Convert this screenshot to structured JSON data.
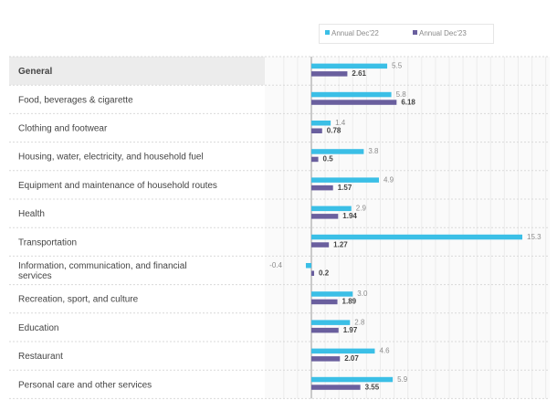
{
  "chart_data": {
    "type": "bar",
    "orientation": "horizontal",
    "categories": [
      "General",
      "Food, beverages & cigarette",
      "Clothing and footwear",
      "Housing, water, electricity, and household fuel",
      "Equipment and maintenance of household routes",
      "Health",
      "Transportation",
      "Information, communication, and financial services",
      "Recreation, sport, and culture",
      "Education",
      "Restaurant",
      "Personal care and other services"
    ],
    "series": [
      {
        "name": "Annual Dec'22",
        "color": "#3bbfe6",
        "values": [
          5.5,
          5.8,
          1.4,
          3.8,
          4.9,
          2.9,
          15.3,
          -0.4,
          3.0,
          2.8,
          4.6,
          5.9
        ],
        "labels": [
          "5.5",
          "5.8",
          "1.4",
          "3.8",
          "4.9",
          "2.9",
          "15.3",
          "-0.4",
          "3.0",
          "2.8",
          "4.6",
          "5.9"
        ]
      },
      {
        "name": "Annual Dec'23",
        "color": "#6a5f9e",
        "values": [
          2.61,
          6.18,
          0.78,
          0.5,
          1.57,
          1.94,
          1.27,
          0.2,
          1.89,
          1.97,
          2.07,
          3.55
        ],
        "labels": [
          "2.61",
          "6.18",
          "0.78",
          "0.5",
          "1.57",
          "1.94",
          "1.27",
          "0.2",
          "1.89",
          "1.97",
          "2.07",
          "3.55"
        ]
      }
    ],
    "xlim": [
      -2,
      17
    ],
    "grid": true,
    "legend": "top",
    "highlight_category": "General"
  }
}
